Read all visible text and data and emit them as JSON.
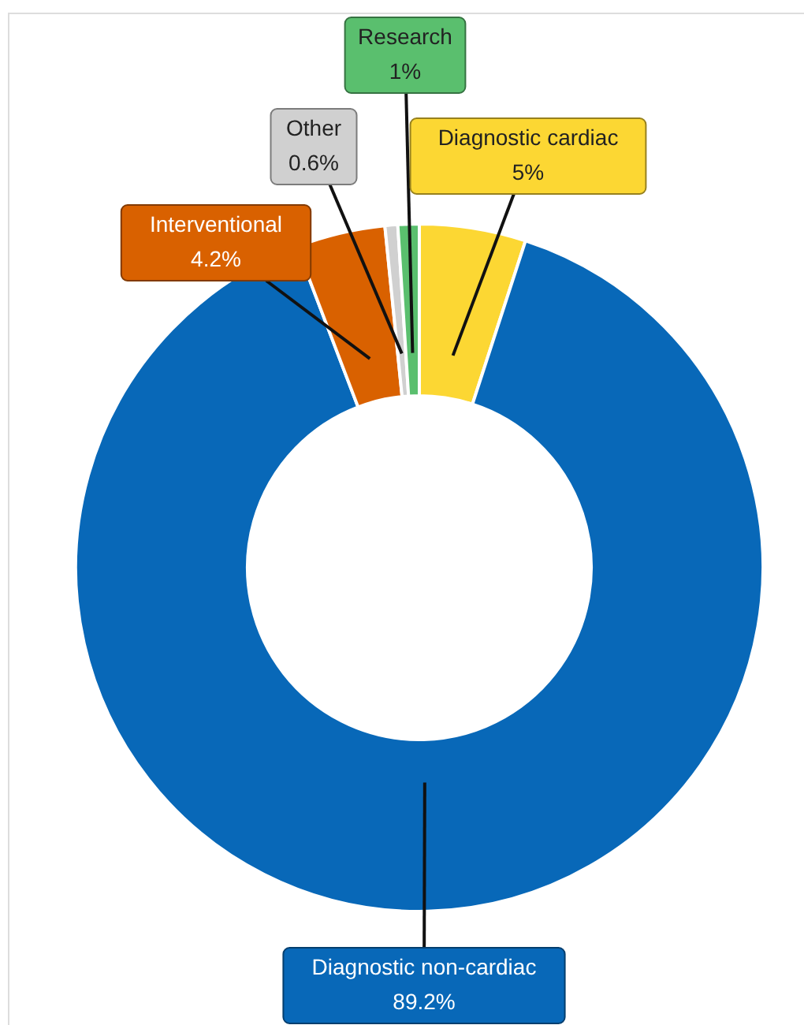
{
  "chart_data": {
    "type": "donut",
    "categories": [
      "Diagnostic cardiac",
      "Diagnostic non-cardiac",
      "Interventional",
      "Other",
      "Research"
    ],
    "values": [
      5,
      89.2,
      4.2,
      0.6,
      1
    ],
    "colors": [
      "#fcd733",
      "#0868b8",
      "#d96100",
      "#d0d0d0",
      "#5abf6e"
    ],
    "value_labels": [
      "5%",
      "89.2%",
      "4.2%",
      "0.6%",
      "1%"
    ]
  }
}
